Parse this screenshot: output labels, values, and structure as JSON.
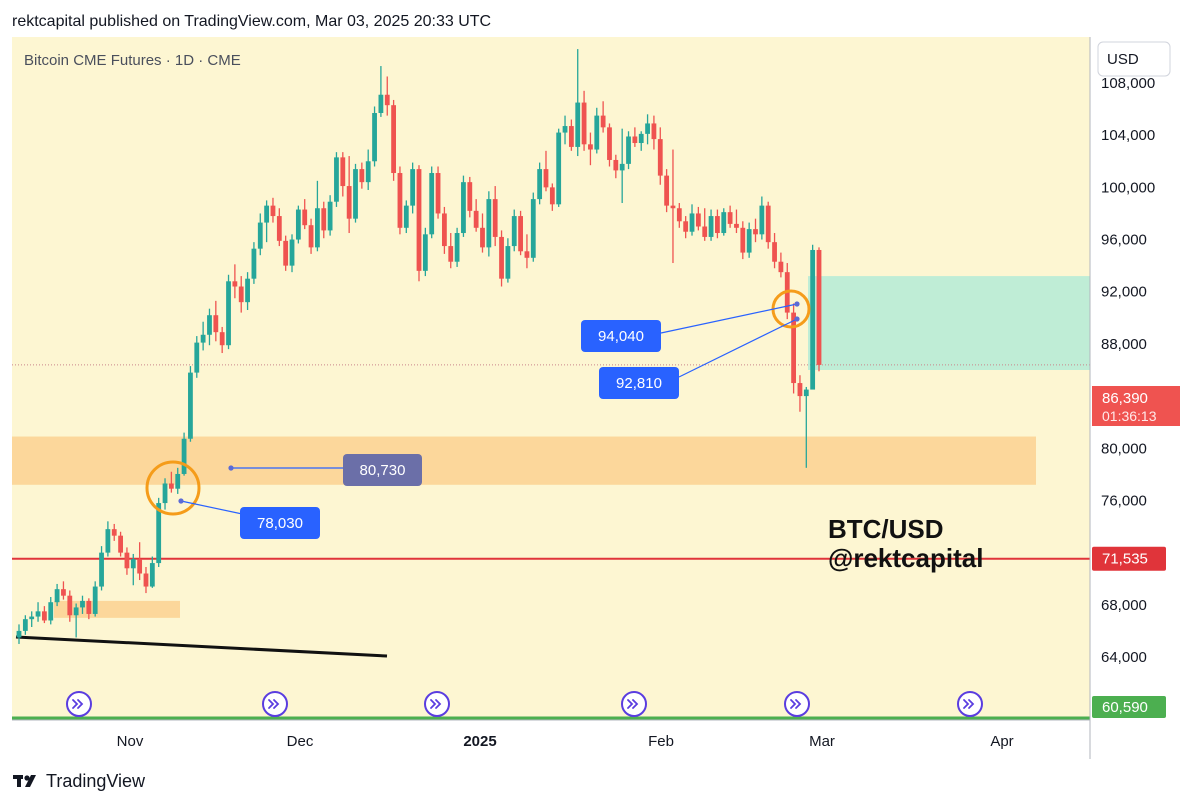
{
  "header": {
    "published": "rektcapital published on TradingView.com, Mar 03, 2025 20:33 UTC"
  },
  "footer": {
    "brand": "TradingView"
  },
  "icons": {
    "logo": "tradingview-logo-icon",
    "event": "forward-arrow-circle-icon"
  },
  "colors": {
    "background": "#fdf6d2",
    "up": "#26a69a",
    "down": "#ef5350",
    "support_zone": "#fcd79b",
    "target_zone": "#b8ecd6",
    "red_line": "#e0343a",
    "green_line": "#4caf50",
    "callout": "#2962ff",
    "callout_grey": "#6b6fa8",
    "circle": "#f59c1a"
  },
  "chart_data": {
    "type": "candlestick",
    "title": "Bitcoin CME Futures · 1D · CME",
    "currency_label": "USD",
    "ylim": [
      60000,
      112000
    ],
    "y_ticks": [
      "64,000",
      "68,000",
      "76,000",
      "80,000",
      "88,000",
      "92,000",
      "96,000",
      "100,000",
      "104,000",
      "108,000"
    ],
    "y_tick_values": [
      64000,
      68000,
      76000,
      80000,
      88000,
      92000,
      96000,
      100000,
      104000,
      108000
    ],
    "x_ticks": [
      "Nov",
      "Dec",
      "2025",
      "Feb",
      "Mar",
      "Apr"
    ],
    "price_tags": {
      "last_price": "86,390",
      "countdown": "01:36:13",
      "red_level": "71,535",
      "green_level": "60,590"
    },
    "levels": {
      "last_price": 86390,
      "red_level": 71535,
      "green_level": 60590
    },
    "zones": {
      "support": [
        77200,
        80900
      ],
      "small_support": [
        67000,
        68300
      ],
      "target": [
        86000,
        93200
      ]
    },
    "callouts": [
      "80,730",
      "78,030",
      "94,040",
      "92,810"
    ],
    "annotation": {
      "line1": "BTC/USD",
      "line2": "@rektcapital"
    },
    "candles": [
      [
        65500,
        66500,
        65000,
        66000
      ],
      [
        66000,
        67200,
        65700,
        66900
      ],
      [
        66900,
        67500,
        66300,
        67100
      ],
      [
        67100,
        68200,
        66700,
        67500
      ],
      [
        67500,
        67900,
        66600,
        66800
      ],
      [
        66800,
        68600,
        66500,
        68200
      ],
      [
        68200,
        69600,
        67900,
        69200
      ],
      [
        69200,
        69800,
        68400,
        68700
      ],
      [
        68700,
        69100,
        66700,
        67200
      ],
      [
        67200,
        68100,
        65500,
        67800
      ],
      [
        67800,
        68700,
        67300,
        68300
      ],
      [
        68300,
        68500,
        66900,
        67300
      ],
      [
        67300,
        69800,
        67100,
        69400
      ],
      [
        69400,
        72500,
        69100,
        72000
      ],
      [
        72000,
        74400,
        71700,
        73800
      ],
      [
        73800,
        74200,
        72900,
        73300
      ],
      [
        73300,
        73600,
        71700,
        72000
      ],
      [
        72000,
        72400,
        70300,
        70800
      ],
      [
        70800,
        71900,
        69500,
        71500
      ],
      [
        71500,
        72800,
        69900,
        70400
      ],
      [
        70400,
        70900,
        68900,
        69400
      ],
      [
        69400,
        71700,
        69300,
        71200
      ],
      [
        71200,
        76200,
        70900,
        75800
      ],
      [
        75800,
        77700,
        75300,
        77300
      ],
      [
        77300,
        78200,
        76600,
        76900
      ],
      [
        76900,
        78500,
        76500,
        78030
      ],
      [
        78030,
        81200,
        77900,
        80730
      ],
      [
        80730,
        86300,
        80500,
        85800
      ],
      [
        85800,
        88600,
        85400,
        88100
      ],
      [
        88100,
        89700,
        87500,
        88700
      ],
      [
        88700,
        90700,
        87900,
        90200
      ],
      [
        90200,
        91300,
        88200,
        88900
      ],
      [
        88900,
        89300,
        87300,
        87900
      ],
      [
        87900,
        93300,
        87600,
        92800
      ],
      [
        92800,
        94100,
        91500,
        92400
      ],
      [
        92400,
        93200,
        90400,
        91200
      ],
      [
        91200,
        93500,
        90600,
        93000
      ],
      [
        93000,
        95800,
        92600,
        95300
      ],
      [
        95300,
        98000,
        94800,
        97300
      ],
      [
        97300,
        99000,
        95800,
        98600
      ],
      [
        98600,
        99200,
        97300,
        97800
      ],
      [
        97800,
        98400,
        95500,
        95900
      ],
      [
        95900,
        96300,
        93600,
        94000
      ],
      [
        94000,
        96400,
        93500,
        96000
      ],
      [
        96000,
        98600,
        95700,
        98300
      ],
      [
        98300,
        99100,
        96800,
        97100
      ],
      [
        97100,
        97600,
        94900,
        95400
      ],
      [
        95400,
        100500,
        95100,
        98400
      ],
      [
        98400,
        98900,
        96100,
        96700
      ],
      [
        96700,
        99400,
        96300,
        98900
      ],
      [
        98900,
        102700,
        98500,
        102300
      ],
      [
        102300,
        102700,
        99300,
        100100
      ],
      [
        100100,
        102400,
        96500,
        97600
      ],
      [
        97600,
        101800,
        97300,
        101400
      ],
      [
        101400,
        101900,
        99900,
        100400
      ],
      [
        100400,
        102900,
        99800,
        102000
      ],
      [
        102000,
        106200,
        101600,
        105700
      ],
      [
        105700,
        109300,
        105400,
        107100
      ],
      [
        107100,
        108500,
        105500,
        106300
      ],
      [
        106300,
        106700,
        100500,
        101100
      ],
      [
        101100,
        101600,
        96400,
        96900
      ],
      [
        96900,
        99000,
        96500,
        98600
      ],
      [
        98600,
        101900,
        98000,
        101400
      ],
      [
        101400,
        101700,
        92800,
        93600
      ],
      [
        93600,
        96900,
        93200,
        96400
      ],
      [
        96400,
        101600,
        96100,
        101100
      ],
      [
        101100,
        101600,
        97600,
        98000
      ],
      [
        98000,
        98500,
        94900,
        95500
      ],
      [
        95500,
        96500,
        93800,
        94300
      ],
      [
        94300,
        96900,
        93900,
        96500
      ],
      [
        96500,
        100900,
        96200,
        100400
      ],
      [
        100400,
        100800,
        97700,
        98200
      ],
      [
        98200,
        99100,
        96600,
        96900
      ],
      [
        96900,
        98000,
        95000,
        95400
      ],
      [
        95400,
        99700,
        94700,
        99100
      ],
      [
        99100,
        100100,
        95500,
        96200
      ],
      [
        96200,
        96700,
        92400,
        93000
      ],
      [
        93000,
        96100,
        92700,
        95500
      ],
      [
        95500,
        98300,
        95100,
        97800
      ],
      [
        97800,
        98200,
        94800,
        95100
      ],
      [
        95100,
        96400,
        93800,
        94600
      ],
      [
        94600,
        99600,
        94300,
        99100
      ],
      [
        99100,
        101900,
        98700,
        101400
      ],
      [
        101400,
        102800,
        99700,
        100000
      ],
      [
        100000,
        100300,
        98200,
        98700
      ],
      [
        98700,
        104500,
        98500,
        104200
      ],
      [
        104200,
        105500,
        103300,
        104700
      ],
      [
        104700,
        105200,
        102800,
        103100
      ],
      [
        103100,
        110600,
        102400,
        106500
      ],
      [
        106500,
        107400,
        102800,
        103300
      ],
      [
        103300,
        104200,
        101700,
        102900
      ],
      [
        102900,
        106100,
        102600,
        105500
      ],
      [
        105500,
        106600,
        104200,
        104600
      ],
      [
        104600,
        104900,
        101600,
        102100
      ],
      [
        102100,
        102500,
        100700,
        101300
      ],
      [
        101300,
        104500,
        98800,
        101800
      ],
      [
        101800,
        104300,
        101400,
        103900
      ],
      [
        103900,
        104600,
        103100,
        103400
      ],
      [
        103400,
        104300,
        102800,
        104100
      ],
      [
        104100,
        105600,
        103300,
        104900
      ],
      [
        104900,
        105500,
        102900,
        103700
      ],
      [
        103700,
        104600,
        100200,
        100900
      ],
      [
        100900,
        101400,
        98100,
        98600
      ],
      [
        98600,
        102900,
        94200,
        98400
      ],
      [
        98400,
        98800,
        96900,
        97400
      ],
      [
        97400,
        97800,
        96100,
        96600
      ],
      [
        96600,
        98700,
        96300,
        98000
      ],
      [
        98000,
        98500,
        96700,
        97000
      ],
      [
        97000,
        98400,
        95900,
        96200
      ],
      [
        96200,
        98300,
        95900,
        97800
      ],
      [
        97800,
        98300,
        96100,
        96500
      ],
      [
        96500,
        98400,
        96300,
        98100
      ],
      [
        98100,
        98600,
        96900,
        97200
      ],
      [
        97200,
        98300,
        96500,
        96900
      ],
      [
        96900,
        97400,
        94500,
        95000
      ],
      [
        95000,
        97300,
        94600,
        96800
      ],
      [
        96800,
        97600,
        95800,
        96400
      ],
      [
        96400,
        99300,
        96000,
        98600
      ],
      [
        98600,
        98900,
        95300,
        95800
      ],
      [
        95800,
        96500,
        93800,
        94300
      ],
      [
        94300,
        95000,
        93100,
        93500
      ],
      [
        93500,
        94200,
        89900,
        90400
      ],
      [
        90400,
        91100,
        84200,
        85000
      ],
      [
        85000,
        85600,
        82800,
        84000
      ],
      [
        84000,
        84700,
        78500,
        84500
      ],
      [
        84500,
        95600,
        85000,
        95200
      ],
      [
        95200,
        95400,
        85900,
        86390
      ]
    ]
  }
}
